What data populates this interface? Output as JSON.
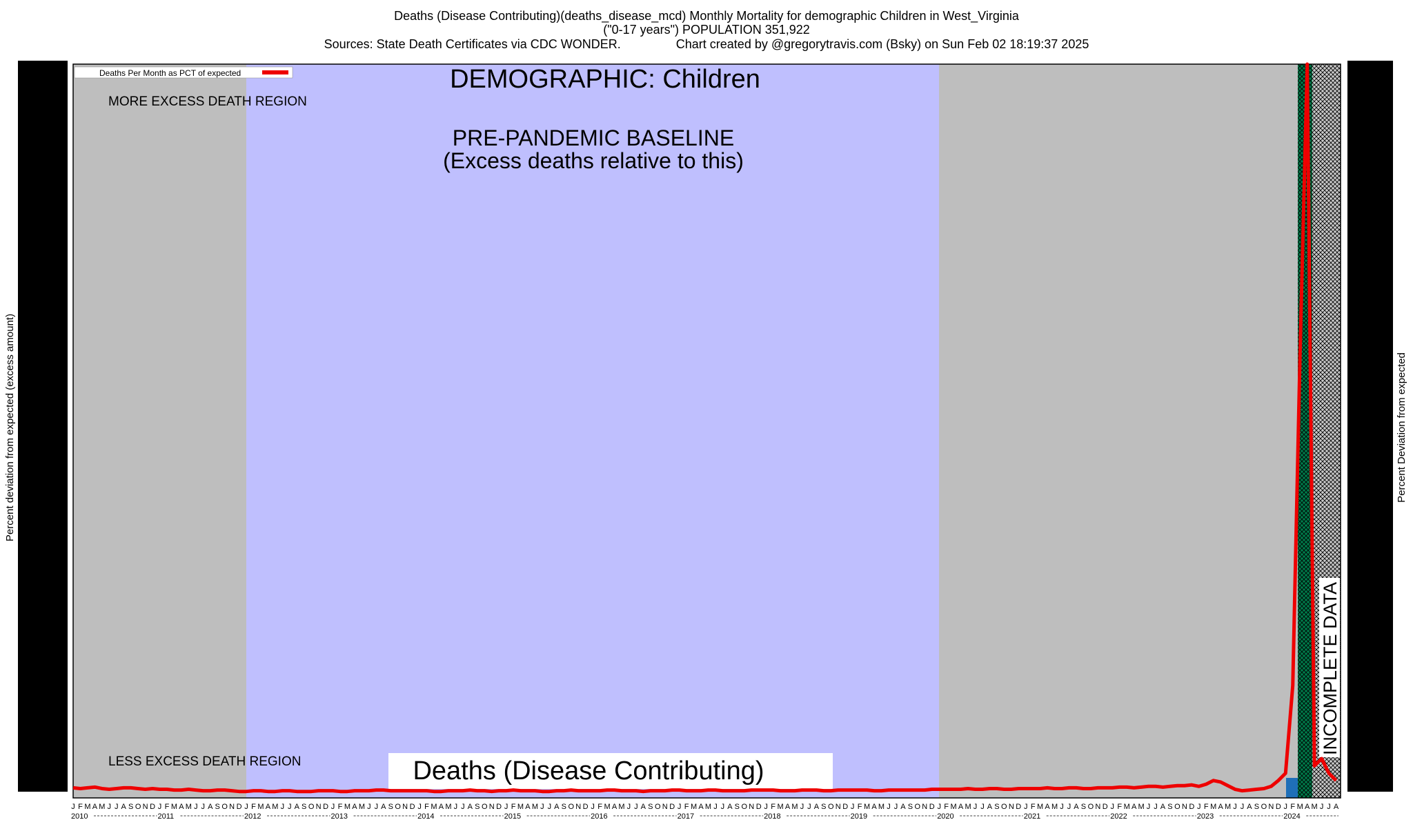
{
  "chart_data": {
    "type": "line",
    "title_lines": [
      "Deaths (Disease Contributing)(deaths_disease_mcd) Monthly Mortality for demographic Children in West_Virginia",
      "(\"0-17 years\") POPULATION 351,922",
      "Sources: State Death Certificates via CDC WONDER.                Chart created by @gregorytravis.com (Bsky) on Sun Feb 02 18:19:37 2025"
    ],
    "demographic_label": "DEMOGRAPHIC: Children",
    "baseline_label": [
      "PRE-PANDEMIC BASELINE",
      "(Excess deaths relative to this)"
    ],
    "more_region_label": "MORE EXCESS DEATH REGION",
    "less_region_label": "LESS EXCESS DEATH REGION",
    "metric_label": "Deaths (Disease Contributing)",
    "incomplete_label": "INCOMPLETE DATA",
    "y_label": "Percent deviation from expected (excess amount)",
    "y2_label": "Percent Deviation from expected",
    "years": [
      "2010",
      "2011",
      "2012",
      "2013",
      "2014",
      "2015",
      "2016",
      "2017",
      "2018",
      "2019",
      "2020",
      "2021",
      "2022",
      "2023",
      "2024"
    ],
    "month_letters": [
      "J",
      "F",
      "M",
      "A",
      "M",
      "J",
      "J",
      "A",
      "S",
      "O",
      "N",
      "D"
    ],
    "ylim": [
      0,
      100
    ],
    "legend": "upper left",
    "series": [
      {
        "name": "Deaths Per Month as PCT of expected",
        "color": "#ee0000",
        "values": [
          1.0,
          0.9,
          1.0,
          1.1,
          0.9,
          0.8,
          0.9,
          1.0,
          1.0,
          0.9,
          0.8,
          0.9,
          0.8,
          0.8,
          0.7,
          0.7,
          0.8,
          0.7,
          0.6,
          0.6,
          0.7,
          0.7,
          0.6,
          0.5,
          0.5,
          0.6,
          0.6,
          0.5,
          0.5,
          0.6,
          0.6,
          0.5,
          0.5,
          0.5,
          0.6,
          0.6,
          0.6,
          0.5,
          0.5,
          0.6,
          0.6,
          0.6,
          0.7,
          0.7,
          0.6,
          0.6,
          0.6,
          0.6,
          0.6,
          0.6,
          0.5,
          0.5,
          0.6,
          0.6,
          0.6,
          0.7,
          0.6,
          0.6,
          0.5,
          0.6,
          0.6,
          0.7,
          0.6,
          0.6,
          0.6,
          0.5,
          0.5,
          0.6,
          0.6,
          0.7,
          0.6,
          0.6,
          0.6,
          0.6,
          0.7,
          0.7,
          0.6,
          0.6,
          0.6,
          0.5,
          0.6,
          0.6,
          0.6,
          0.7,
          0.7,
          0.6,
          0.6,
          0.6,
          0.7,
          0.7,
          0.6,
          0.6,
          0.6,
          0.6,
          0.7,
          0.7,
          0.7,
          0.7,
          0.6,
          0.6,
          0.6,
          0.7,
          0.7,
          0.7,
          0.6,
          0.6,
          0.7,
          0.7,
          0.7,
          0.7,
          0.7,
          0.6,
          0.6,
          0.7,
          0.7,
          0.7,
          0.7,
          0.7,
          0.7,
          0.8,
          0.8,
          0.8,
          0.8,
          0.8,
          0.9,
          0.8,
          0.8,
          0.9,
          0.9,
          0.8,
          0.8,
          0.9,
          0.9,
          0.9,
          0.9,
          1.0,
          0.9,
          0.9,
          1.0,
          1.0,
          0.9,
          0.9,
          1.0,
          1.0,
          1.0,
          1.1,
          1.1,
          1.0,
          1.1,
          1.2,
          1.2,
          1.1,
          1.2,
          1.3,
          1.3,
          1.4,
          1.2,
          1.5,
          2.0,
          1.8,
          1.3,
          0.8,
          0.6,
          0.7,
          0.8,
          0.9,
          1.2,
          2.0,
          3,
          15,
          60,
          100,
          4,
          5,
          3,
          2
        ]
      }
    ]
  }
}
